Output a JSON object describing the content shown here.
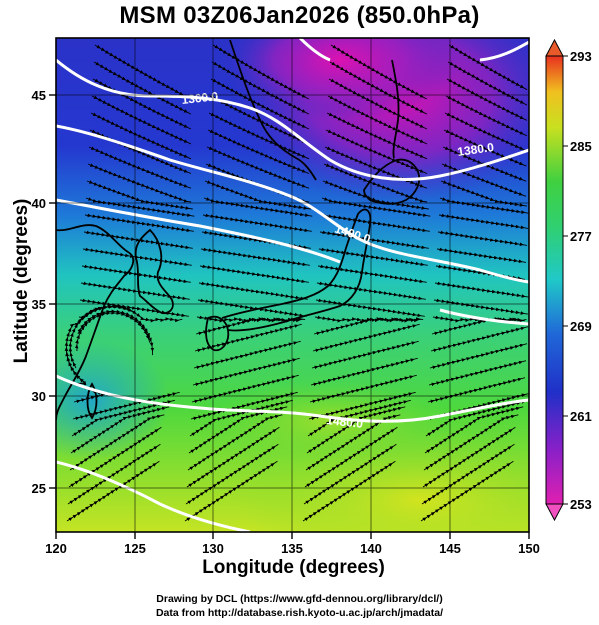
{
  "title": "MSM 03Z06Jan2026 (850.0hPa)",
  "axes": {
    "xlabel": "Longitude (degrees)",
    "ylabel": "Latitude  (degrees)",
    "x_ticks": [
      "120",
      "125",
      "130",
      "135",
      "140",
      "145",
      "150"
    ],
    "y_ticks": [
      "25",
      "30",
      "35",
      "40",
      "45"
    ]
  },
  "colorbar": {
    "ticks": [
      "293",
      "285",
      "277",
      "269",
      "261",
      "253"
    ]
  },
  "contours": {
    "labels": [
      "1360.0",
      "1380.0",
      "1400.0",
      "1480.0"
    ]
  },
  "footer": {
    "line1": "Drawing by DCL (https://www.gfd-dennou.org/library/dcl/)",
    "line2": "Data from http://database.rish.kyoto-u.ac.jp/arch/jmadata/"
  },
  "colors": {
    "cold": "#c0159a",
    "cool": "#2030c8",
    "mild": "#20c0c8",
    "warm": "#40d040",
    "hot": "#d8e020",
    "contour": "#ffffff",
    "streamline": "#000000"
  }
}
